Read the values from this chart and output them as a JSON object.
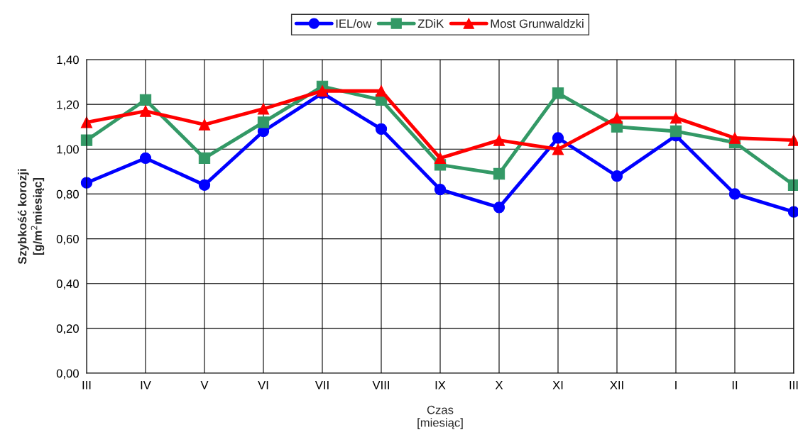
{
  "chart_data": {
    "type": "line",
    "xlabel": "Czas\n[miesiąc]",
    "ylabel": "Szybkość korozji\n[g/m$^{2}$miesiąc]",
    "categories": [
      "III",
      "IV",
      "V",
      "VI",
      "VII",
      "VIII",
      "IX",
      "X",
      "XI",
      "XII",
      "I",
      "II",
      "III"
    ],
    "series": [
      {
        "name": "IEL/ow",
        "color": "#0000ff",
        "marker": "circle",
        "values": [
          0.85,
          0.96,
          0.84,
          1.08,
          1.25,
          1.09,
          0.82,
          0.74,
          1.05,
          0.88,
          1.06,
          0.8,
          0.72
        ]
      },
      {
        "name": "ZDiK",
        "color": "#339966",
        "marker": "square",
        "values": [
          1.04,
          1.22,
          0.96,
          1.12,
          1.28,
          1.22,
          0.93,
          0.89,
          1.25,
          1.1,
          1.08,
          1.03,
          0.84
        ]
      },
      {
        "name": "Most Grunwaldzki",
        "color": "#ff0000",
        "marker": "triangle",
        "values": [
          1.12,
          1.17,
          1.11,
          1.18,
          1.26,
          1.26,
          0.96,
          1.04,
          1.0,
          1.14,
          1.14,
          1.05,
          1.04
        ]
      }
    ],
    "ylim": [
      0,
      1.4
    ],
    "yticks": [
      {
        "value": 0,
        "label": "0,00"
      },
      {
        "value": 0.2,
        "label": "0,20"
      },
      {
        "value": 0.4,
        "label": "0,40"
      },
      {
        "value": 0.6,
        "label": "0,60"
      },
      {
        "value": 0.8,
        "label": "0,80"
      },
      {
        "value": 1.0,
        "label": "1,00"
      },
      {
        "value": 1.2,
        "label": "1,20"
      },
      {
        "value": 1.4,
        "label": "1,40"
      }
    ],
    "grid": true,
    "legend": "top",
    "line_style": "solid"
  }
}
